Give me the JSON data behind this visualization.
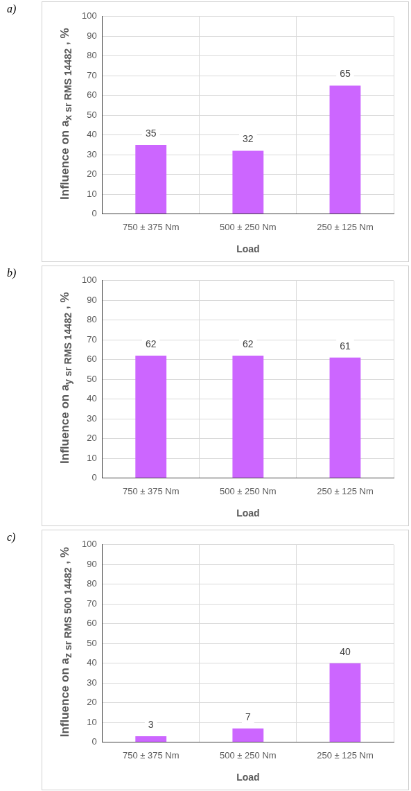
{
  "chart_data": [
    {
      "type": "bar",
      "annotations": [
        "a)"
      ],
      "xlabel": "Load",
      "ylabel": "Influence on a$_{x sr RMS 14482}$ , %",
      "categories": [
        "750 ± 375 Nm",
        "500 ± 250 Nm",
        "250 ± 125 Nm"
      ],
      "values": [
        35,
        32,
        65
      ],
      "color": "#cc66ff",
      "ylim": [
        0,
        100
      ],
      "yticks": [
        0,
        10,
        20,
        30,
        40,
        50,
        60,
        70,
        80,
        90,
        100
      ],
      "grid": true,
      "data_labels": true
    },
    {
      "type": "bar",
      "annotations": [
        "b)"
      ],
      "xlabel": "Load",
      "ylabel": "Influence on a$_{y sr RMS 14482}$ , %",
      "categories": [
        "750 ± 375 Nm",
        "500 ± 250 Nm",
        "250 ± 125 Nm"
      ],
      "values": [
        62,
        62,
        61
      ],
      "color": "#cc66ff",
      "ylim": [
        0,
        100
      ],
      "yticks": [
        0,
        10,
        20,
        30,
        40,
        50,
        60,
        70,
        80,
        90,
        100
      ],
      "grid": true,
      "data_labels": true
    },
    {
      "type": "bar",
      "annotations": [
        "c)"
      ],
      "xlabel": "Load",
      "ylabel": "Influence on a$_{z sr RMS 500 14482}$ , %",
      "categories": [
        "750 ± 375 Nm",
        "500 ± 250 Nm",
        "250 ± 125 Nm"
      ],
      "values": [
        3,
        7,
        40
      ],
      "color": "#cc66ff",
      "ylim": [
        0,
        100
      ],
      "yticks": [
        0,
        10,
        20,
        30,
        40,
        50,
        60,
        70,
        80,
        90,
        100
      ],
      "grid": true,
      "data_labels": true
    }
  ]
}
